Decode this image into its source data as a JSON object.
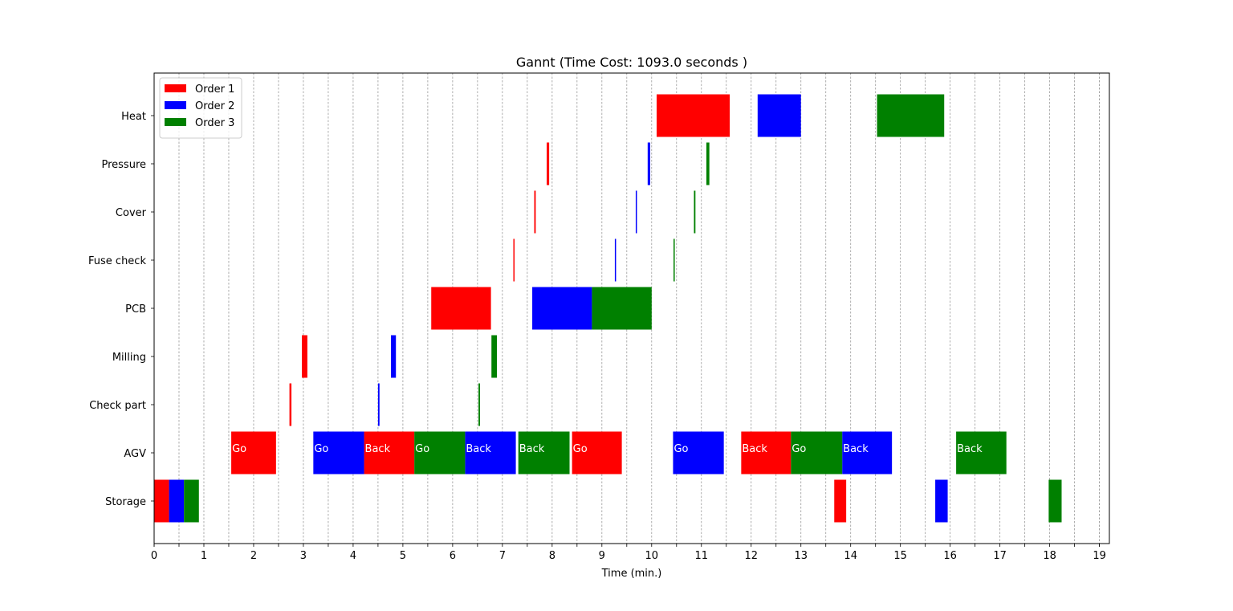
{
  "chart_data": {
    "type": "gantt",
    "title": "Gannt (Time Cost: 1093.0 seconds )",
    "xlabel": "Time (min.)",
    "ylabel": "",
    "xlim": [
      0,
      19.2
    ],
    "xticks": [
      0,
      1,
      2,
      3,
      4,
      5,
      6,
      7,
      8,
      9,
      10,
      11,
      12,
      13,
      14,
      15,
      16,
      17,
      18,
      19
    ],
    "minor_gridlines": [
      0.5,
      1.5,
      2.5,
      3.5,
      4.5,
      5.5,
      6.5,
      7.5,
      8.5,
      9.5,
      10.5,
      11.5,
      12.5,
      13.5,
      14.5,
      15.5,
      16.5,
      17.5,
      18.5,
      19.0
    ],
    "grid": "vertical-dashed",
    "legend_position": "top-left",
    "categories": [
      "Storage",
      "AGV",
      "Check part",
      "Milling",
      "PCB",
      "Fuse check",
      "Cover",
      "Pressure",
      "Heat"
    ],
    "colors": {
      "Order 1": "#ff0000",
      "Order 2": "#0000ff",
      "Order 3": "#008000"
    },
    "series": [
      {
        "name": "Order 1",
        "color": "#ff0000",
        "tasks": [
          {
            "category": "Storage",
            "start": 0.0,
            "end": 0.3
          },
          {
            "category": "AGV",
            "start": 1.55,
            "end": 2.45,
            "label": "Go"
          },
          {
            "category": "Check part",
            "start": 2.72,
            "end": 2.76
          },
          {
            "category": "Milling",
            "start": 2.97,
            "end": 3.08
          },
          {
            "category": "AGV",
            "start": 4.22,
            "end": 5.23,
            "label": "Back"
          },
          {
            "category": "PCB",
            "start": 5.57,
            "end": 6.77
          },
          {
            "category": "Fuse check",
            "start": 7.22,
            "end": 7.24
          },
          {
            "category": "Cover",
            "start": 7.64,
            "end": 7.67
          },
          {
            "category": "Pressure",
            "start": 7.89,
            "end": 7.94
          },
          {
            "category": "AGV",
            "start": 8.4,
            "end": 9.4,
            "label": "Go"
          },
          {
            "category": "Heat",
            "start": 10.1,
            "end": 11.57
          },
          {
            "category": "AGV",
            "start": 11.8,
            "end": 12.8,
            "label": "Back"
          },
          {
            "category": "Storage",
            "start": 13.67,
            "end": 13.91
          }
        ]
      },
      {
        "name": "Order 2",
        "color": "#0000ff",
        "tasks": [
          {
            "category": "Storage",
            "start": 0.3,
            "end": 0.6
          },
          {
            "category": "AGV",
            "start": 3.2,
            "end": 4.22,
            "label": "Go"
          },
          {
            "category": "Check part",
            "start": 4.5,
            "end": 4.53
          },
          {
            "category": "Milling",
            "start": 4.76,
            "end": 4.86
          },
          {
            "category": "AGV",
            "start": 6.25,
            "end": 7.27,
            "label": "Back"
          },
          {
            "category": "PCB",
            "start": 7.6,
            "end": 8.8
          },
          {
            "category": "Fuse check",
            "start": 9.26,
            "end": 9.28
          },
          {
            "category": "Cover",
            "start": 9.68,
            "end": 9.7
          },
          {
            "category": "Pressure",
            "start": 9.92,
            "end": 9.97
          },
          {
            "category": "AGV",
            "start": 10.43,
            "end": 11.45,
            "label": "Go"
          },
          {
            "category": "Heat",
            "start": 12.13,
            "end": 13.0
          },
          {
            "category": "AGV",
            "start": 13.83,
            "end": 14.83,
            "label": "Back"
          },
          {
            "category": "Storage",
            "start": 15.7,
            "end": 15.95
          }
        ]
      },
      {
        "name": "Order 3",
        "color": "#008000",
        "tasks": [
          {
            "category": "Storage",
            "start": 0.6,
            "end": 0.9
          },
          {
            "category": "AGV",
            "start": 5.23,
            "end": 6.25,
            "label": "Go"
          },
          {
            "category": "Check part",
            "start": 6.52,
            "end": 6.55
          },
          {
            "category": "Milling",
            "start": 6.78,
            "end": 6.89
          },
          {
            "category": "AGV",
            "start": 7.32,
            "end": 8.35,
            "label": "Back"
          },
          {
            "category": "PCB",
            "start": 8.8,
            "end": 10.0
          },
          {
            "category": "Fuse check",
            "start": 10.44,
            "end": 10.46
          },
          {
            "category": "Cover",
            "start": 10.85,
            "end": 10.88
          },
          {
            "category": "Pressure",
            "start": 11.1,
            "end": 11.16
          },
          {
            "category": "AGV",
            "start": 12.8,
            "end": 13.83,
            "label": "Go"
          },
          {
            "category": "Heat",
            "start": 14.53,
            "end": 15.88
          },
          {
            "category": "AGV",
            "start": 16.12,
            "end": 17.13,
            "label": "Back"
          },
          {
            "category": "Storage",
            "start": 17.98,
            "end": 18.24
          }
        ]
      }
    ]
  }
}
